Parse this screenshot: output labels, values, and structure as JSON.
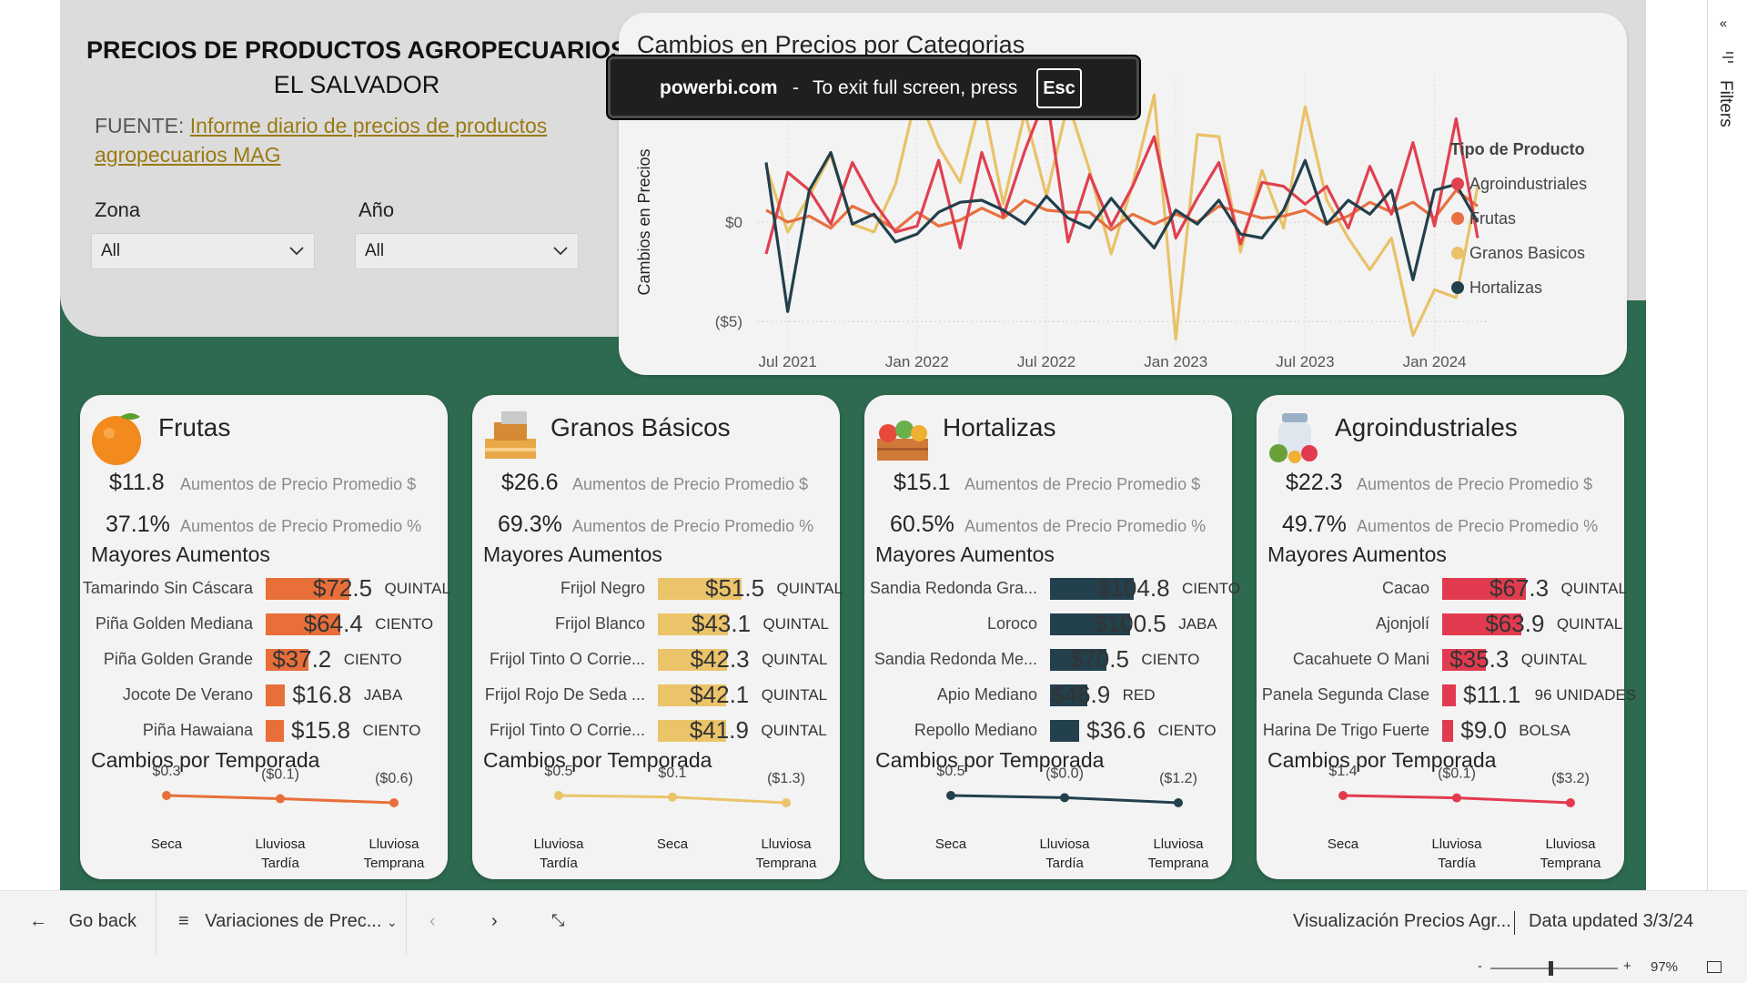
{
  "header": {
    "title": "PRECIOS DE PRODUCTOS AGROPECUARIOS",
    "subtitle": "EL SALVADOR",
    "source_prefix": "FUENTE:",
    "source_link": "Informe diario de precios de productos agropecuarios MAG"
  },
  "slicers": [
    {
      "label": "Zona",
      "value": "All"
    },
    {
      "label": "Año",
      "value": "All"
    }
  ],
  "toast": {
    "domain": "powerbi.com",
    "sep": "-",
    "message": "To exit full screen, press",
    "key": "Esc"
  },
  "line_chart": {
    "title": "Cambios en Precios por Categorias",
    "ylabel": "Cambios en Precios",
    "ytick_labels": [
      "$0",
      "($5)"
    ],
    "xtick_labels": [
      "Jul 2021",
      "Jan 2022",
      "Jul 2022",
      "Jan 2023",
      "Jul 2023",
      "Jan 2024"
    ],
    "legend_title": "Tipo de Producto"
  },
  "chart_data": {
    "type": "line",
    "title": "Cambios en Precios por Categorias",
    "ylabel": "Cambios en Precios",
    "xlabel": "",
    "ylim": [
      -6.5,
      6.5
    ],
    "x": [
      "2021-06",
      "2021-07",
      "2021-08",
      "2021-09",
      "2021-10",
      "2021-11",
      "2021-12",
      "2022-01",
      "2022-02",
      "2022-03",
      "2022-04",
      "2022-05",
      "2022-06",
      "2022-07",
      "2022-08",
      "2022-09",
      "2022-10",
      "2022-11",
      "2022-12",
      "2023-01",
      "2023-02",
      "2023-03",
      "2023-04",
      "2023-05",
      "2023-06",
      "2023-07",
      "2023-08",
      "2023-09",
      "2023-10",
      "2023-11",
      "2023-12",
      "2024-01",
      "2024-02",
      "2024-03"
    ],
    "series": [
      {
        "name": "Agroindustriales",
        "color": "#e04050",
        "values": [
          -1.6,
          2.5,
          1.6,
          -0.1,
          3.0,
          1.0,
          -0.5,
          -0.2,
          3.1,
          -1.3,
          3.5,
          0.3,
          3.6,
          6.4,
          -1.0,
          2.4,
          -0.2,
          1.8,
          4.3,
          -0.8,
          1.2,
          3.0,
          -1.1,
          2.0,
          1.8,
          0.9,
          1.8,
          -0.3,
          2.8,
          0.4,
          4.0,
          -0.2,
          5.2,
          -0.8
        ]
      },
      {
        "name": "Frutas",
        "color": "#e87040",
        "values": [
          0.6,
          0.0,
          0.3,
          -0.3,
          0.8,
          0.3,
          -0.4,
          0.5,
          -0.2,
          0.1,
          0.7,
          0.2,
          1.1,
          0.6,
          0.5,
          0.5,
          -0.4,
          0.4,
          -0.1,
          0.4,
          0.0,
          0.8,
          0.5,
          0.2,
          0.3,
          0.6,
          -0.1,
          0.3,
          1.0,
          0.5,
          1.0,
          0.2,
          1.6,
          0.8
        ]
      },
      {
        "name": "Granos Basicos",
        "color": "#e8c268",
        "values": [
          2.8,
          -0.5,
          1.3,
          3.4,
          -0.1,
          -0.5,
          1.9,
          6.5,
          3.8,
          2.0,
          6.4,
          0.9,
          5.5,
          1.3,
          6.0,
          2.6,
          -1.6,
          1.9,
          6.4,
          -5.9,
          4.4,
          4.3,
          -1.5,
          2.6,
          -0.3,
          5.8,
          1.1,
          -0.8,
          -2.4,
          -0.8,
          -5.7,
          -3.4,
          -3.8,
          1.8
        ]
      },
      {
        "name": "Hortalizas",
        "color": "#22404c",
        "values": [
          3.0,
          -4.5,
          1.6,
          3.5,
          -0.1,
          0.4,
          -1.0,
          -0.6,
          0.5,
          1.0,
          1.1,
          0.6,
          -0.1,
          1.3,
          0.2,
          -0.3,
          1.2,
          -0.1,
          -1.3,
          0.6,
          -0.1,
          1.1,
          -0.6,
          -0.8,
          0.6,
          3.1,
          -0.1,
          1.1,
          0.4,
          1.6,
          -2.9,
          1.6,
          1.9,
          0.0
        ]
      }
    ],
    "legend": "right"
  },
  "cards": [
    {
      "name": "frutas",
      "title": "Frutas",
      "color": "#e86f3a",
      "icon": "orange-fruit-icon",
      "kpi_abs_value": "$11.8",
      "kpi_pct_value": "37.1%",
      "kpi_abs_label": "Aumentos de Precio Promedio $",
      "kpi_pct_label": "Aumentos de Precio Promedio %",
      "bars_title": "Mayores Aumentos",
      "bars": [
        {
          "label": "Tamarindo Sin Cáscara",
          "value": 72.5,
          "value_label": "$72.5",
          "unit": "QUINTAL"
        },
        {
          "label": "Piña Golden Mediana",
          "value": 64.4,
          "value_label": "$64.4",
          "unit": "CIENTO"
        },
        {
          "label": "Piña Golden Grande",
          "value": 37.2,
          "value_label": "$37.2",
          "unit": "CIENTO"
        },
        {
          "label": "Jocote De Verano",
          "value": 16.8,
          "value_label": "$16.8",
          "unit": "JABA"
        },
        {
          "label": "Piña Hawaiana",
          "value": 15.8,
          "value_label": "$15.8",
          "unit": "CIENTO"
        }
      ],
      "season_title": "Cambios por Temporada",
      "season": {
        "categories": [
          "Seca",
          "Lluviosa Tardía",
          "Lluviosa Temprana"
        ],
        "values": [
          0.3,
          -0.1,
          -0.6
        ],
        "labels": [
          "$0.3",
          "($0.1)",
          "($0.6)"
        ]
      }
    },
    {
      "name": "granos",
      "title": "Granos Básicos",
      "color": "#ebc46a",
      "icon": "grain-sacks-icon",
      "kpi_abs_value": "$26.6",
      "kpi_pct_value": "69.3%",
      "kpi_abs_label": "Aumentos de Precio Promedio $",
      "kpi_pct_label": "Aumentos de Precio Promedio %",
      "bars_title": "Mayores Aumentos",
      "bars": [
        {
          "label": "Frijol Negro",
          "value": 51.5,
          "value_label": "$51.5",
          "unit": "QUINTAL"
        },
        {
          "label": "Frijol Blanco",
          "value": 43.1,
          "value_label": "$43.1",
          "unit": "QUINTAL"
        },
        {
          "label": "Frijol Tinto O Corrie...",
          "value": 42.3,
          "value_label": "$42.3",
          "unit": "QUINTAL"
        },
        {
          "label": "Frijol Rojo De Seda ...",
          "value": 42.1,
          "value_label": "$42.1",
          "unit": "QUINTAL"
        },
        {
          "label": "Frijol Tinto O Corrie...",
          "value": 41.9,
          "value_label": "$41.9",
          "unit": "QUINTAL"
        }
      ],
      "season_title": "Cambios por Temporada",
      "season": {
        "categories": [
          "Lluviosa Tardía",
          "Seca",
          "Lluviosa Temprana"
        ],
        "values": [
          0.5,
          0.1,
          -1.3
        ],
        "labels": [
          "$0.5",
          "$0.1",
          "($1.3)"
        ]
      }
    },
    {
      "name": "hortalizas",
      "title": "Hortalizas",
      "color": "#23404d",
      "icon": "vegetable-crate-icon",
      "kpi_abs_value": "$15.1",
      "kpi_pct_value": "60.5%",
      "kpi_abs_label": "Aumentos de Precio Promedio $",
      "kpi_pct_label": "Aumentos de Precio Promedio %",
      "bars_title": "Mayores Aumentos",
      "bars": [
        {
          "label": "Sandia Redonda Gra...",
          "value": 104.8,
          "value_label": "$104.8",
          "unit": "CIENTO"
        },
        {
          "label": "Loroco",
          "value": 100.5,
          "value_label": "$100.5",
          "unit": "JABA"
        },
        {
          "label": "Sandia Redonda Me...",
          "value": 70.5,
          "value_label": "$70.5",
          "unit": "CIENTO"
        },
        {
          "label": "Apio Mediano",
          "value": 46.9,
          "value_label": "$46.9",
          "unit": "RED"
        },
        {
          "label": "Repollo Mediano",
          "value": 36.6,
          "value_label": "$36.6",
          "unit": "CIENTO"
        }
      ],
      "season_title": "Cambios por Temporada",
      "season": {
        "categories": [
          "Seca",
          "Lluviosa Tardía",
          "Lluviosa Temprana"
        ],
        "values": [
          0.5,
          0.0,
          -1.2
        ],
        "labels": [
          "$0.5",
          "($0.0)",
          "($1.2)"
        ]
      }
    },
    {
      "name": "agroindustriales",
      "title": "Agroindustriales",
      "color": "#e23a4e",
      "icon": "milk-jar-icon",
      "kpi_abs_value": "$22.3",
      "kpi_pct_value": "49.7%",
      "kpi_abs_label": "Aumentos de Precio Promedio $",
      "kpi_pct_label": "Aumentos de Precio Promedio %",
      "bars_title": "Mayores Aumentos",
      "bars": [
        {
          "label": "Cacao",
          "value": 67.3,
          "value_label": "$67.3",
          "unit": "QUINTAL"
        },
        {
          "label": "Ajonjolí",
          "value": 63.9,
          "value_label": "$63.9",
          "unit": "QUINTAL"
        },
        {
          "label": "Cacahuete O Mani",
          "value": 35.3,
          "value_label": "$35.3",
          "unit": "QUINTAL"
        },
        {
          "label": "Panela Segunda Clase",
          "value": 11.1,
          "value_label": "$11.1",
          "unit": "96 UNIDADES"
        },
        {
          "label": "Harina De Trigo Fuerte",
          "value": 9.0,
          "value_label": "$9.0",
          "unit": "BOLSA"
        }
      ],
      "season_title": "Cambios por Temporada",
      "season": {
        "categories": [
          "Seca",
          "Lluviosa Tardía",
          "Lluviosa Temprana"
        ],
        "values": [
          1.4,
          -0.1,
          -3.2
        ],
        "labels": [
          "$1.4",
          "($0.1)",
          "($3.2)"
        ]
      }
    }
  ],
  "filter_pane": {
    "label": "Filters"
  },
  "bottom_bar": {
    "go_back": "Go back",
    "page_name": "Variaciones de Prec...",
    "report_name": "Visualización Precios Agr...",
    "data_updated": "Data updated 3/3/24"
  },
  "status_bar": {
    "zoom_minus": "-",
    "zoom_plus": "+",
    "zoom": "97%"
  }
}
